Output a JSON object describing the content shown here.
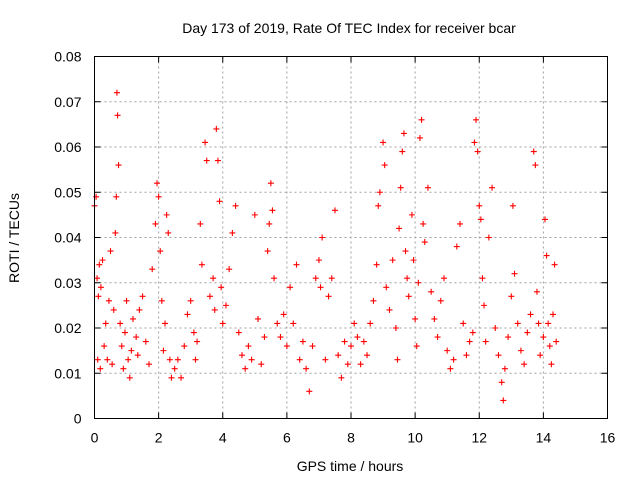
{
  "chart_data": {
    "type": "scatter",
    "title": "Day 173 of 2019, Rate Of TEC Index for receiver bcar",
    "xlabel": "GPS time / hours",
    "ylabel": "ROTI / TECUs",
    "xlim": [
      0,
      16
    ],
    "ylim": [
      0,
      0.08
    ],
    "xticks": [
      "0",
      "2",
      "4",
      "6",
      "8",
      "10",
      "12",
      "14",
      "16"
    ],
    "yticks": [
      "0",
      "0.01",
      "0.02",
      "0.03",
      "0.04",
      "0.05",
      "0.06",
      "0.07",
      "0.08"
    ],
    "grid": true,
    "marker": "+",
    "color": "#ff0000",
    "series": [
      {
        "name": "ROTI",
        "points": [
          [
            0.0,
            0.047
          ],
          [
            0.05,
            0.049
          ],
          [
            0.08,
            0.031
          ],
          [
            0.1,
            0.013
          ],
          [
            0.12,
            0.027
          ],
          [
            0.15,
            0.034
          ],
          [
            0.18,
            0.011
          ],
          [
            0.2,
            0.029
          ],
          [
            0.25,
            0.035
          ],
          [
            0.3,
            0.016
          ],
          [
            0.35,
            0.021
          ],
          [
            0.4,
            0.013
          ],
          [
            0.45,
            0.026
          ],
          [
            0.5,
            0.037
          ],
          [
            0.55,
            0.012
          ],
          [
            0.6,
            0.024
          ],
          [
            0.65,
            0.041
          ],
          [
            0.68,
            0.049
          ],
          [
            0.7,
            0.072
          ],
          [
            0.72,
            0.067
          ],
          [
            0.75,
            0.056
          ],
          [
            0.8,
            0.021
          ],
          [
            0.85,
            0.016
          ],
          [
            0.9,
            0.011
          ],
          [
            0.95,
            0.019
          ],
          [
            1.0,
            0.026
          ],
          [
            1.05,
            0.013
          ],
          [
            1.1,
            0.009
          ],
          [
            1.15,
            0.015
          ],
          [
            1.2,
            0.022
          ],
          [
            1.3,
            0.018
          ],
          [
            1.35,
            0.014
          ],
          [
            1.4,
            0.024
          ],
          [
            1.5,
            0.027
          ],
          [
            1.6,
            0.017
          ],
          [
            1.7,
            0.012
          ],
          [
            1.8,
            0.033
          ],
          [
            1.9,
            0.043
          ],
          [
            1.95,
            0.052
          ],
          [
            2.0,
            0.049
          ],
          [
            2.05,
            0.037
          ],
          [
            2.1,
            0.026
          ],
          [
            2.15,
            0.015
          ],
          [
            2.2,
            0.021
          ],
          [
            2.25,
            0.045
          ],
          [
            2.3,
            0.041
          ],
          [
            2.35,
            0.013
          ],
          [
            2.4,
            0.009
          ],
          [
            2.5,
            0.011
          ],
          [
            2.6,
            0.013
          ],
          [
            2.7,
            0.009
          ],
          [
            2.8,
            0.016
          ],
          [
            2.9,
            0.023
          ],
          [
            3.0,
            0.026
          ],
          [
            3.1,
            0.019
          ],
          [
            3.15,
            0.013
          ],
          [
            3.2,
            0.017
          ],
          [
            3.3,
            0.043
          ],
          [
            3.35,
            0.034
          ],
          [
            3.45,
            0.061
          ],
          [
            3.5,
            0.057
          ],
          [
            3.6,
            0.027
          ],
          [
            3.7,
            0.031
          ],
          [
            3.75,
            0.024
          ],
          [
            3.8,
            0.064
          ],
          [
            3.85,
            0.057
          ],
          [
            3.9,
            0.048
          ],
          [
            3.95,
            0.029
          ],
          [
            4.0,
            0.021
          ],
          [
            4.1,
            0.025
          ],
          [
            4.2,
            0.033
          ],
          [
            4.3,
            0.041
          ],
          [
            4.4,
            0.047
          ],
          [
            4.5,
            0.019
          ],
          [
            4.6,
            0.014
          ],
          [
            4.7,
            0.011
          ],
          [
            4.8,
            0.016
          ],
          [
            4.9,
            0.013
          ],
          [
            5.0,
            0.045
          ],
          [
            5.1,
            0.022
          ],
          [
            5.2,
            0.012
          ],
          [
            5.3,
            0.018
          ],
          [
            5.4,
            0.037
          ],
          [
            5.45,
            0.043
          ],
          [
            5.5,
            0.052
          ],
          [
            5.55,
            0.046
          ],
          [
            5.6,
            0.031
          ],
          [
            5.7,
            0.021
          ],
          [
            5.8,
            0.018
          ],
          [
            5.9,
            0.023
          ],
          [
            6.0,
            0.016
          ],
          [
            6.1,
            0.029
          ],
          [
            6.2,
            0.021
          ],
          [
            6.3,
            0.034
          ],
          [
            6.4,
            0.013
          ],
          [
            6.5,
            0.017
          ],
          [
            6.6,
            0.011
          ],
          [
            6.7,
            0.006
          ],
          [
            6.8,
            0.016
          ],
          [
            6.9,
            0.031
          ],
          [
            7.0,
            0.035
          ],
          [
            7.05,
            0.029
          ],
          [
            7.1,
            0.04
          ],
          [
            7.2,
            0.013
          ],
          [
            7.3,
            0.027
          ],
          [
            7.4,
            0.031
          ],
          [
            7.5,
            0.046
          ],
          [
            7.6,
            0.014
          ],
          [
            7.7,
            0.009
          ],
          [
            7.8,
            0.017
          ],
          [
            7.9,
            0.012
          ],
          [
            8.0,
            0.016
          ],
          [
            8.1,
            0.021
          ],
          [
            8.2,
            0.018
          ],
          [
            8.3,
            0.012
          ],
          [
            8.4,
            0.017
          ],
          [
            8.5,
            0.014
          ],
          [
            8.6,
            0.021
          ],
          [
            8.7,
            0.026
          ],
          [
            8.8,
            0.034
          ],
          [
            8.85,
            0.047
          ],
          [
            8.9,
            0.05
          ],
          [
            9.0,
            0.061
          ],
          [
            9.05,
            0.056
          ],
          [
            9.1,
            0.029
          ],
          [
            9.2,
            0.024
          ],
          [
            9.3,
            0.035
          ],
          [
            9.4,
            0.02
          ],
          [
            9.45,
            0.013
          ],
          [
            9.5,
            0.042
          ],
          [
            9.55,
            0.051
          ],
          [
            9.6,
            0.059
          ],
          [
            9.65,
            0.063
          ],
          [
            9.7,
            0.037
          ],
          [
            9.75,
            0.031
          ],
          [
            9.8,
            0.027
          ],
          [
            9.9,
            0.045
          ],
          [
            9.95,
            0.035
          ],
          [
            10.0,
            0.022
          ],
          [
            10.05,
            0.016
          ],
          [
            10.1,
            0.03
          ],
          [
            10.15,
            0.062
          ],
          [
            10.2,
            0.066
          ],
          [
            10.25,
            0.043
          ],
          [
            10.3,
            0.039
          ],
          [
            10.4,
            0.051
          ],
          [
            10.5,
            0.028
          ],
          [
            10.6,
            0.022
          ],
          [
            10.7,
            0.018
          ],
          [
            10.8,
            0.026
          ],
          [
            10.9,
            0.031
          ],
          [
            11.0,
            0.015
          ],
          [
            11.1,
            0.011
          ],
          [
            11.2,
            0.013
          ],
          [
            11.3,
            0.038
          ],
          [
            11.4,
            0.043
          ],
          [
            11.5,
            0.021
          ],
          [
            11.6,
            0.014
          ],
          [
            11.7,
            0.017
          ],
          [
            11.8,
            0.019
          ],
          [
            11.85,
            0.061
          ],
          [
            11.9,
            0.066
          ],
          [
            11.95,
            0.059
          ],
          [
            12.0,
            0.047
          ],
          [
            12.05,
            0.044
          ],
          [
            12.1,
            0.031
          ],
          [
            12.15,
            0.025
          ],
          [
            12.2,
            0.017
          ],
          [
            12.3,
            0.04
          ],
          [
            12.4,
            0.051
          ],
          [
            12.5,
            0.02
          ],
          [
            12.6,
            0.014
          ],
          [
            12.7,
            0.008
          ],
          [
            12.75,
            0.004
          ],
          [
            12.8,
            0.011
          ],
          [
            12.9,
            0.018
          ],
          [
            13.0,
            0.027
          ],
          [
            13.05,
            0.047
          ],
          [
            13.1,
            0.032
          ],
          [
            13.2,
            0.021
          ],
          [
            13.3,
            0.015
          ],
          [
            13.4,
            0.012
          ],
          [
            13.5,
            0.019
          ],
          [
            13.6,
            0.023
          ],
          [
            13.7,
            0.059
          ],
          [
            13.75,
            0.056
          ],
          [
            13.8,
            0.028
          ],
          [
            13.85,
            0.021
          ],
          [
            13.9,
            0.014
          ],
          [
            14.0,
            0.018
          ],
          [
            14.05,
            0.044
          ],
          [
            14.1,
            0.036
          ],
          [
            14.15,
            0.021
          ],
          [
            14.2,
            0.016
          ],
          [
            14.25,
            0.012
          ],
          [
            14.3,
            0.023
          ],
          [
            14.35,
            0.034
          ],
          [
            14.4,
            0.017
          ]
        ]
      }
    ]
  }
}
